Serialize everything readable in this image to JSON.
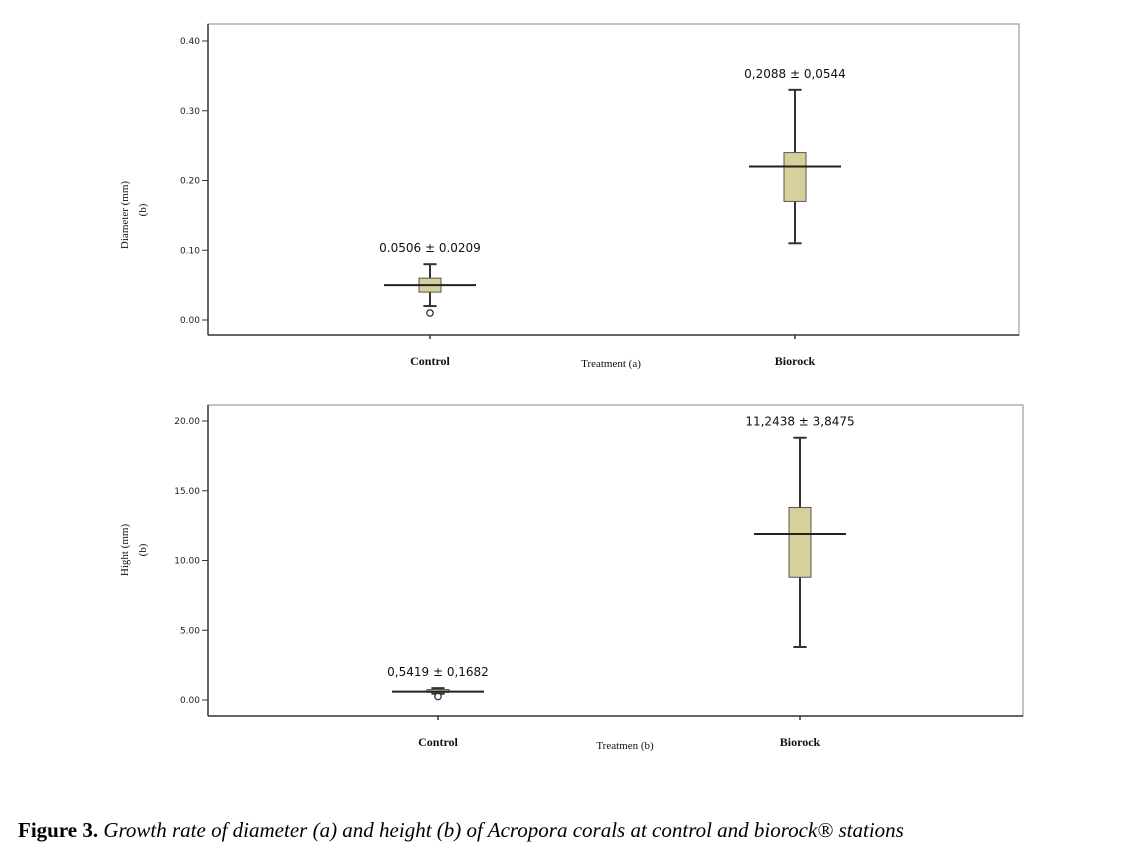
{
  "chart_data": [
    {
      "type": "box",
      "panel": "a",
      "categories": [
        "Control",
        "Biorock"
      ],
      "xlabel": "Treatment (a)",
      "ylabel": "Diameter (mm)",
      "ylabel_sub": "(b)",
      "ylim": [
        0,
        0.4
      ],
      "yticks": [
        0.0,
        0.1,
        0.2,
        0.3,
        0.4
      ],
      "ytick_labels": [
        "0.00",
        "0.10",
        "0.20",
        "0.30",
        "0.40"
      ],
      "boxes": [
        {
          "category": "Control",
          "min": 0.02,
          "q1": 0.04,
          "median": 0.05,
          "q3": 0.06,
          "max": 0.08,
          "outliers": [
            0.01
          ],
          "annotation": "0.0506 ± 0.0209"
        },
        {
          "category": "Biorock",
          "min": 0.11,
          "q1": 0.17,
          "median": 0.22,
          "q3": 0.24,
          "max": 0.33,
          "outliers": [],
          "annotation": "0,2088 ± 0,0544"
        }
      ],
      "box_color": "#d8d09a",
      "grid": false
    },
    {
      "type": "box",
      "panel": "b",
      "categories": [
        "Control",
        "Biorock"
      ],
      "xlabel": "Treatmen (b)",
      "ylabel": "Hight (mm)",
      "ylabel_sub": "(b)",
      "ylim": [
        0,
        20
      ],
      "yticks": [
        0,
        5,
        10,
        15,
        20
      ],
      "ytick_labels": [
        "0.00",
        "5.00",
        "10.00",
        "15.00",
        "20.00"
      ],
      "boxes": [
        {
          "category": "Control",
          "min": 0.45,
          "q1": 0.55,
          "median": 0.6,
          "q3": 0.75,
          "max": 0.85,
          "outliers": [
            0.25
          ],
          "annotation": "0,5419 ± 0,1682"
        },
        {
          "category": "Biorock",
          "min": 3.8,
          "q1": 8.8,
          "median": 11.9,
          "q3": 13.8,
          "max": 18.8,
          "outliers": [],
          "annotation": "11,2438 ± 3,8475"
        }
      ],
      "box_color": "#d8d09a",
      "grid": false
    }
  ],
  "caption": {
    "number": "Figure 3.",
    "text": "Growth rate of diameter (a) and height (b) of Acropora corals at control and biorock® stations"
  }
}
